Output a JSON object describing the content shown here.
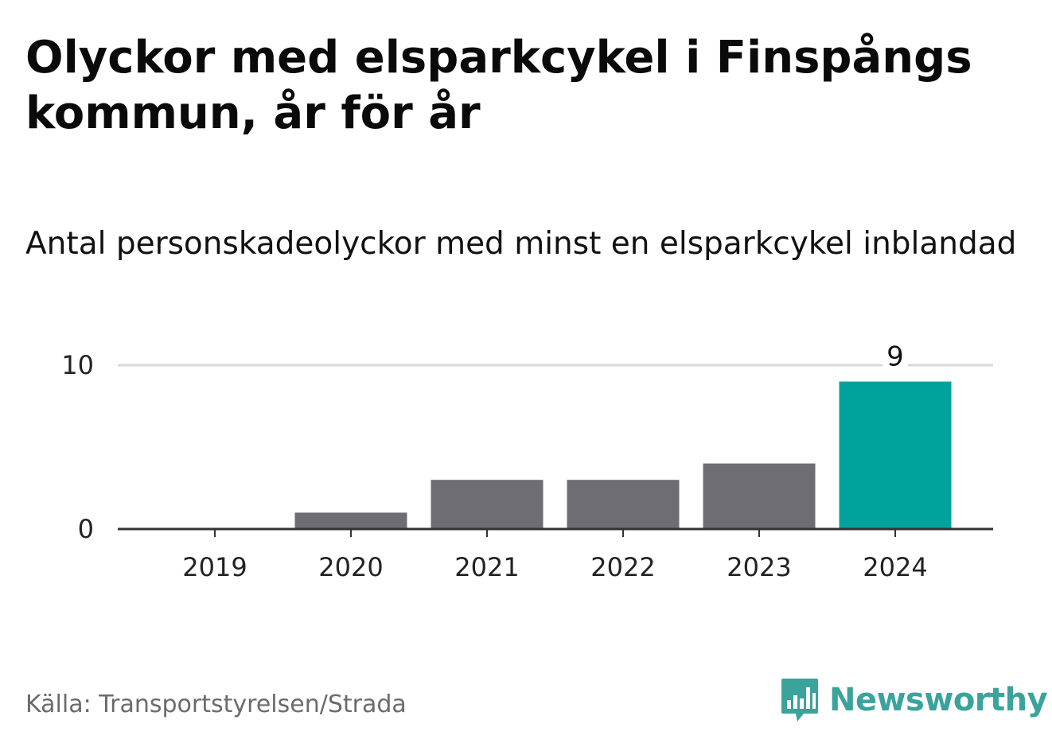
{
  "title": "Olyckor med elsparkcykel i Finspångs kommun, år för år",
  "subtitle": "Antal personskadeolyckor med minst en elsparkcykel inblandad",
  "source": "Källa: Transportstyrelsen/Strada",
  "brand": {
    "name": "Newsworthy",
    "icon": "newsworthy-logo-icon",
    "color": "#3aa39c"
  },
  "colors": {
    "bar": "#6e6d72",
    "highlight": "#00a39b",
    "grid": "#d9d9d9",
    "axis": "#333333"
  },
  "chart_data": {
    "type": "bar",
    "categories": [
      "2019",
      "2020",
      "2021",
      "2022",
      "2023",
      "2024"
    ],
    "values": [
      0,
      1,
      3,
      3,
      4,
      9
    ],
    "highlight_index": 5,
    "data_labels": [
      {
        "category": "2024",
        "text": "9"
      }
    ],
    "ylim": [
      0,
      10
    ],
    "yticks": [
      0,
      10
    ],
    "ytick_labels": [
      "0",
      "10"
    ],
    "grid": true,
    "legend": false,
    "xlabel": "",
    "ylabel": ""
  }
}
